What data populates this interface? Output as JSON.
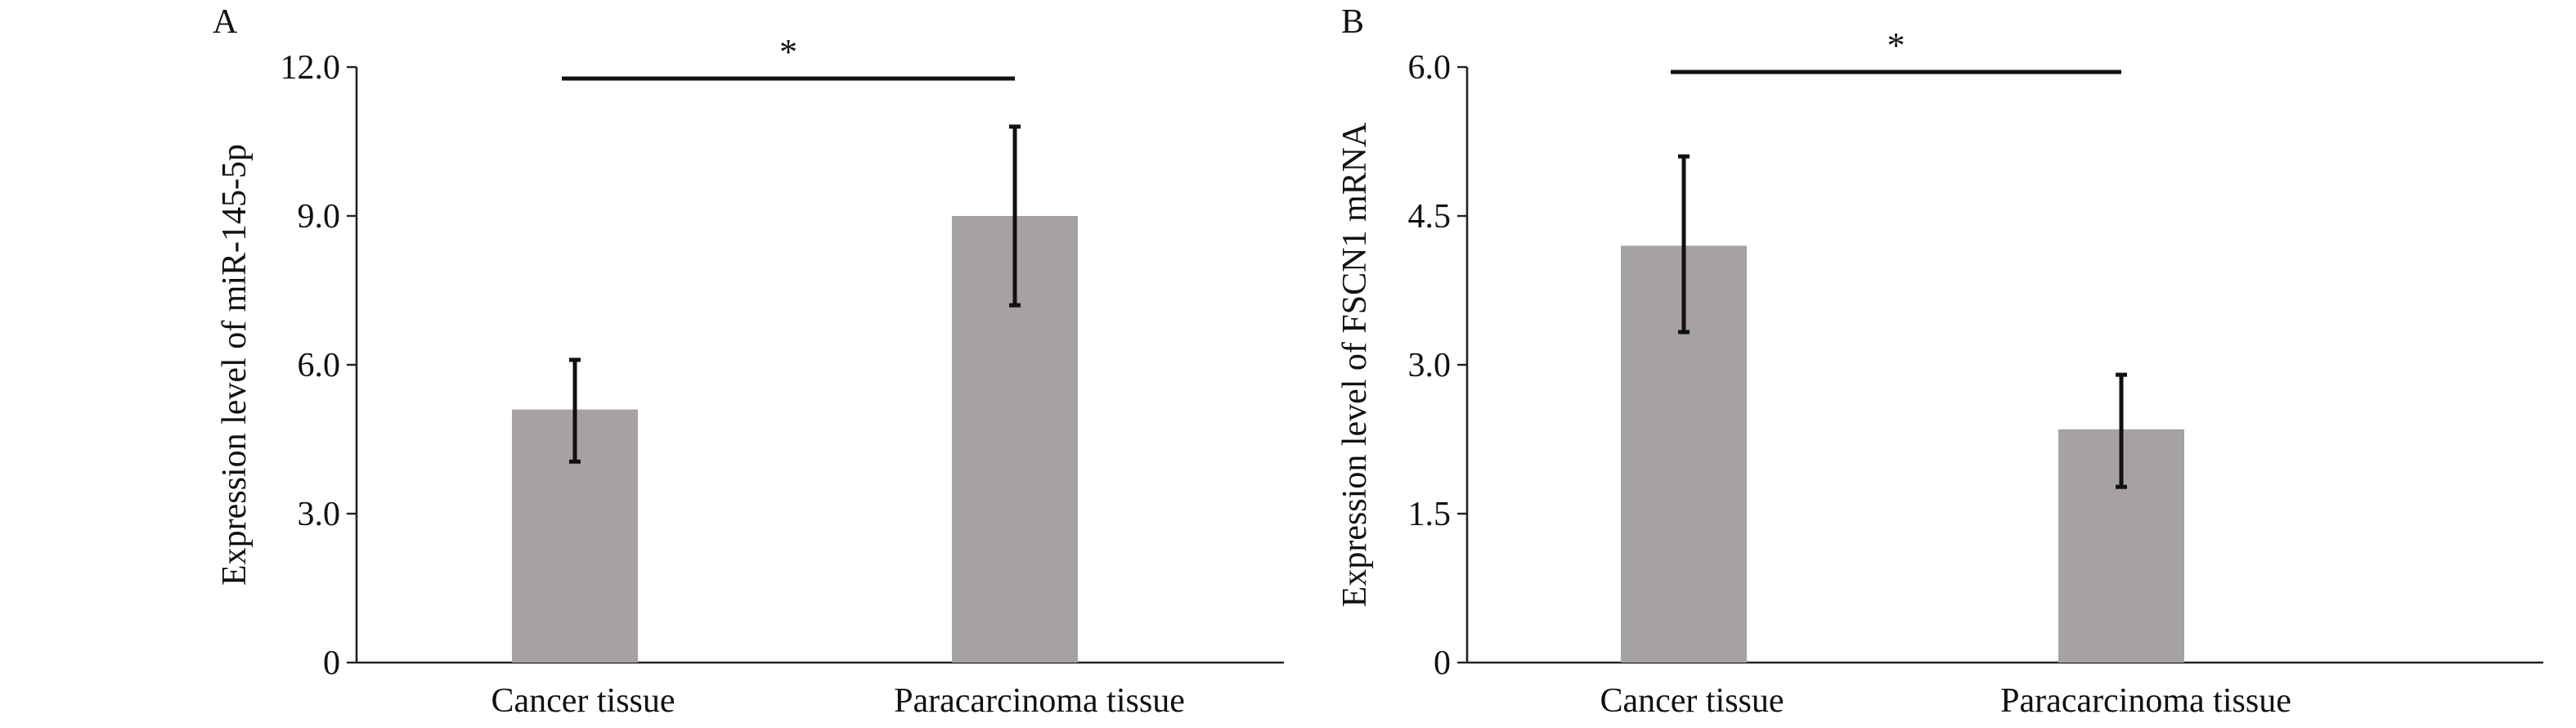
{
  "chart_data": [
    {
      "type": "bar",
      "panel_label": "A",
      "title": "",
      "xlabel": "",
      "ylabel": "Expression level of miR-145-5p",
      "categories": [
        "Cancer tissue",
        "Paracarcinoma tissue"
      ],
      "values": [
        5.1,
        9.0
      ],
      "error_low": [
        4.05,
        7.2
      ],
      "error_high": [
        6.1,
        10.8
      ],
      "ylim": [
        0,
        12
      ],
      "yticks": [
        0,
        3,
        6,
        9,
        12
      ],
      "ytick_labels": [
        "0",
        "3.0",
        "6.0",
        "9.0",
        "12.0"
      ],
      "significance": {
        "from": 0,
        "to": 1,
        "label": "*",
        "level": 11.7
      },
      "bar_color": "#a6a1a4",
      "grid": false
    },
    {
      "type": "bar",
      "panel_label": "B",
      "title": "",
      "xlabel": "",
      "ylabel": "Expression level of FSCN1 mRNA",
      "categories": [
        "Cancer tissue",
        "Paracarcinoma tissue"
      ],
      "values": [
        4.2,
        2.35
      ],
      "error_low": [
        3.33,
        1.77
      ],
      "error_high": [
        5.1,
        2.9
      ],
      "ylim": [
        0,
        6
      ],
      "yticks": [
        0,
        1.5,
        3,
        4.5,
        6
      ],
      "ytick_labels": [
        "0",
        "1.5",
        "3.0",
        "4.5",
        "6.0"
      ],
      "significance": {
        "from": 0,
        "to": 1,
        "label": "*",
        "level": 5.93
      },
      "bar_color": "#a6a1a4",
      "grid": false
    }
  ]
}
